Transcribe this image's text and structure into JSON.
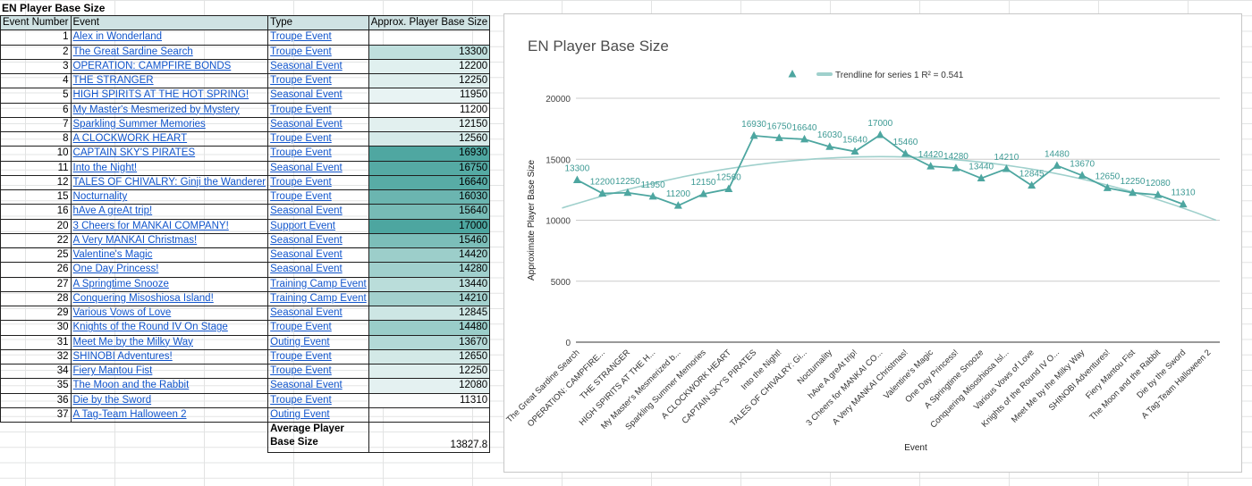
{
  "sheet": {
    "title": "EN Player Base Size",
    "headers": {
      "number": "Event Number",
      "event": "Event",
      "type": "Type",
      "size": "Approx. Player Base Size"
    },
    "rows": [
      {
        "n": "1",
        "event": "Alex in Wonderland",
        "type": "Troupe Event",
        "size": ""
      },
      {
        "n": "2",
        "event": "The Great Sardine Search",
        "type": "Troupe Event",
        "size": "13300"
      },
      {
        "n": "3",
        "event": "OPERATION: CAMPFIRE BONDS",
        "type": "Seasonal Event",
        "size": "12200"
      },
      {
        "n": "4",
        "event": "THE STRANGER",
        "type": "Troupe Event",
        "size": "12250"
      },
      {
        "n": "5",
        "event": "HIGH SPIRITS AT THE HOT SPRING!",
        "type": "Seasonal Event",
        "size": "11950"
      },
      {
        "n": "6",
        "event": "My Master's Mesmerized by Mystery",
        "type": "Troupe Event",
        "size": "11200"
      },
      {
        "n": "7",
        "event": "Sparkling Summer Memories",
        "type": "Seasonal Event",
        "size": "12150"
      },
      {
        "n": "8",
        "event": "A CLOCKWORK HEART",
        "type": "Troupe Event",
        "size": "12560"
      },
      {
        "n": "10",
        "event": "CAPTAIN SKY'S PIRATES",
        "type": "Troupe Event",
        "size": "16930"
      },
      {
        "n": "11",
        "event": "Into the Night!",
        "type": "Seasonal Event",
        "size": "16750"
      },
      {
        "n": "12",
        "event": "TALES OF CHIVALRY: Ginji the Wanderer",
        "type": "Troupe Event",
        "size": "16640"
      },
      {
        "n": "15",
        "event": "Nocturnality",
        "type": "Troupe Event",
        "size": "16030"
      },
      {
        "n": "16",
        "event": "hAve A greAt trip!",
        "type": "Seasonal Event",
        "size": "15640"
      },
      {
        "n": "20",
        "event": "3 Cheers for MANKAI COMPANY!",
        "type": "Support Event",
        "size": "17000"
      },
      {
        "n": "22",
        "event": "A Very MANKAI Christmas!",
        "type": "Seasonal Event",
        "size": "15460"
      },
      {
        "n": "25",
        "event": "Valentine's Magic",
        "type": "Seasonal Event",
        "size": "14420"
      },
      {
        "n": "26",
        "event": "One Day Princess!",
        "type": "Seasonal Event",
        "size": "14280"
      },
      {
        "n": "27",
        "event": "A Springtime Snooze",
        "type": "Training Camp Event",
        "size": "13440"
      },
      {
        "n": "28",
        "event": "Conquering Misoshiosa Island!",
        "type": "Training Camp Event",
        "size": "14210"
      },
      {
        "n": "29",
        "event": "Various Vows of Love",
        "type": "Seasonal Event",
        "size": "12845"
      },
      {
        "n": "30",
        "event": "Knights of the Round IV On Stage",
        "type": "Troupe Event",
        "size": "14480"
      },
      {
        "n": "31",
        "event": "Meet Me by the Milky Way",
        "type": "Outing Event",
        "size": "13670"
      },
      {
        "n": "32",
        "event": "SHINOBI Adventures!",
        "type": "Troupe Event",
        "size": "12650"
      },
      {
        "n": "34",
        "event": "Fiery Mantou Fist",
        "type": "Troupe Event",
        "size": "12250"
      },
      {
        "n": "35",
        "event": "The Moon and the Rabbit",
        "type": "Seasonal Event",
        "size": "12080"
      },
      {
        "n": "36",
        "event": "Die by the Sword",
        "type": "Troupe Event",
        "size": "11310"
      },
      {
        "n": "37",
        "event": "A Tag-Team Halloween 2",
        "type": "Outing Event",
        "size": ""
      }
    ],
    "average_label": "Average Player Base Size",
    "average_value": "13827.8",
    "heatmap": {
      "low": "#ffffff",
      "high": "#4da6a0",
      "min": 11200,
      "max": 17000
    }
  },
  "chart_data": {
    "type": "line",
    "title": "EN Player Base Size",
    "xlabel": "Event",
    "ylabel": "Approximate Player Base Size",
    "ylim": [
      0,
      20000
    ],
    "yticks": [
      "0",
      "5000",
      "10000",
      "15000",
      "20000"
    ],
    "grid": true,
    "legend_position": "top",
    "legend": {
      "series_marker": "triangle",
      "trendline_label": "Trendline for series 1 R² = 0.541"
    },
    "colors": {
      "series": "#4da6a0",
      "trendline": "#9fd0cc",
      "grid": "#cccccc"
    },
    "categories": [
      "The Great Sardine Search",
      "OPERATION: CAMPFIRE...",
      "THE STRANGER",
      "HIGH SPIRITS AT THE H...",
      "My Master's Mesmerized b...",
      "Sparkling Summer Memories",
      "A CLOCKWORK HEART",
      "CAPTAIN SKY'S PIRATES",
      "Into the Night!",
      "TALES OF CHIVALRY: Gi...",
      "Nocturnality",
      "hAve A greAt trip!",
      "3 Cheers for MANKAI CO...",
      "A Very MANKAI Christmas!",
      "Valentine's Magic",
      "One Day Princess!",
      "A Springtime Snooze",
      "Conquering Misoshiosa Isl...",
      "Various Vows of Love",
      "Knights of the Round IV O...",
      "Meet Me by the Milky Way",
      "SHINOBI Adventures!",
      "Fiery Mantou Fist",
      "The Moon and the Rabbit",
      "Die by the Sword",
      "A Tag-Team Halloween 2"
    ],
    "values": [
      13300,
      12200,
      12250,
      11950,
      11200,
      12150,
      12560,
      16930,
      16750,
      16640,
      16030,
      15640,
      17000,
      15460,
      14420,
      14280,
      13440,
      14210,
      12845,
      14480,
      13670,
      12650,
      12250,
      12080,
      11310,
      null
    ],
    "data_labels": [
      "13300",
      "12200",
      "12250",
      "11950",
      "11200",
      "12150",
      "12560",
      "16930",
      "16750",
      "16640",
      "16030",
      "15640",
      "17000",
      "15460",
      "14420",
      "14280",
      "13440",
      "14210",
      "12845",
      "14480",
      "13670",
      "12650",
      "12250",
      "12080",
      "11310",
      ""
    ],
    "trendline": {
      "kind": "polynomial",
      "x": [
        0,
        25
      ],
      "y_start": 11000,
      "y_peak": 15200,
      "y_end": 10000
    }
  }
}
